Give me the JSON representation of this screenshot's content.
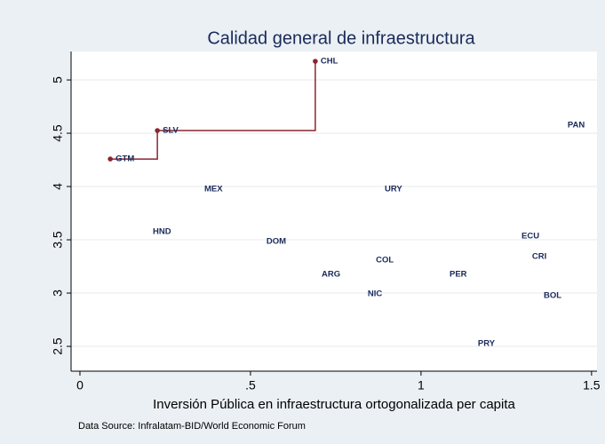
{
  "chart_data": {
    "type": "scatter",
    "title": "Calidad general de infraestructura",
    "x_label": "Inversión Pública en infraestructura ortogonalizada per capita",
    "note": "Data Source: Infralatam-BID/World Economic Forum",
    "xlim": [
      -0.026,
      1.516
    ],
    "ylim": [
      2.267,
      5.267
    ],
    "xticks": [
      0,
      {
        "value": 0.5,
        "label": ".5"
      },
      1,
      1.5
    ],
    "yticks": [
      2.5,
      3,
      3.5,
      4,
      4.5,
      5
    ],
    "grid": true,
    "series": [
      {
        "color": "#8b2530",
        "markers": true,
        "connect": "stairstep",
        "labels": [
          "GTM",
          "SLV",
          "CHL"
        ],
        "x": [
          0.089,
          0.227,
          0.69
        ],
        "values": [
          4.258,
          4.525,
          5.175
        ]
      },
      {
        "color": "#1a2a5a",
        "markers": false,
        "connect": "none",
        "labels": [
          "MEX",
          "URY",
          "HND",
          "DOM",
          "ARG",
          "COL",
          "NIC",
          "PER",
          "ECU",
          "CRI",
          "BOL",
          "PAN",
          "PRY"
        ],
        "x": [
          0.349,
          0.878,
          0.198,
          0.531,
          0.693,
          0.852,
          0.828,
          1.068,
          1.279,
          1.31,
          1.344,
          1.414,
          1.151
        ],
        "values": [
          3.975,
          3.975,
          3.575,
          3.483,
          3.175,
          3.308,
          2.992,
          3.175,
          3.533,
          3.342,
          2.975,
          4.575,
          2.525
        ]
      }
    ]
  }
}
